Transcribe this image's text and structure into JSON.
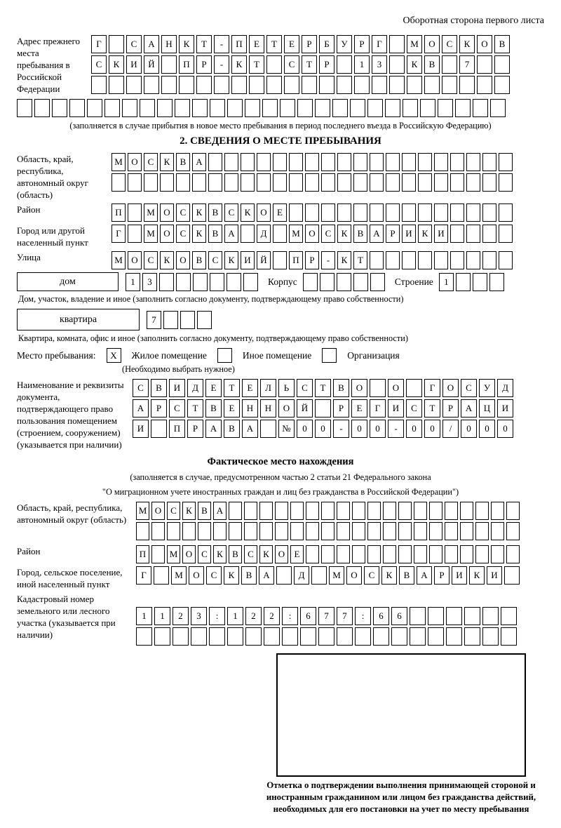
{
  "colors": {
    "border": "#000000",
    "background": "#ffffff",
    "text": "#000000"
  },
  "header": {
    "note": "Оборотная сторона первого листа"
  },
  "prev_address": {
    "label": "Адрес прежнего места пребывания в Российской Федерации",
    "rows": [
      "Г САНКТ-ПЕТЕРБУРГ МОСКОВ",
      "СКИЙ ПР-КТ СТР 13 КВ 7",
      "",
      ""
    ],
    "caption": "(заполняется в случае прибытия в новое место пребывания в период последнего въезда в Российскую Федерацию)"
  },
  "section2": {
    "title": "2. СВЕДЕНИЯ О МЕСТЕ ПРЕБЫВАНИЯ",
    "oblast": {
      "label": "Область, край, республика, автономный округ (область)",
      "rows": [
        "МОСКВА",
        ""
      ]
    },
    "raion": {
      "label": "Район",
      "row": "П МОСКВСКОЕ"
    },
    "gorod": {
      "label": "Город или другой населенный пункт",
      "row": "Г МОСКВА Д МОСКВАРИКИ"
    },
    "ulitsa": {
      "label": "Улица",
      "row": "МОСКОВСКИЙ ПР-КТ"
    },
    "dom": {
      "label": "дом",
      "row": "13"
    },
    "korpus": {
      "label": "Корпус",
      "row": ""
    },
    "stroenie": {
      "label": "Строение",
      "row": "1"
    },
    "dom_caption": "Дом, участок, владение и иное (заполнить согласно документу, подтверждающему право собственности)",
    "kvartira": {
      "label": "квартира",
      "row": "7"
    },
    "kvartira_caption": "Квартира, комната, офис и иное (заполнить согласно документу, подтверждающему право собственности)",
    "place": {
      "label": "Место пребывания:",
      "options": [
        {
          "label": "Жилое помещение",
          "checked": "X"
        },
        {
          "label": "Иное помещение",
          "checked": ""
        },
        {
          "label": "Организация",
          "checked": ""
        }
      ],
      "note": "(Необходимо выбрать нужное)"
    },
    "doc": {
      "label": "Наименование и реквизиты документа, подтверждающего право пользования помещением (строением, сооружением) (указывается при наличии)",
      "rows": [
        "СВИДЕТЕЛЬСТВО О ГОСУД",
        "АРСТВЕННОЙ РЕГИСТРАЦИ",
        "И ПРАВА №00-00-00/000"
      ]
    }
  },
  "actual": {
    "title": "Фактическое место нахождения",
    "caption1": "(заполняется в случае, предусмотренном частью 2 статьи 21 Федерального закона",
    "caption2": "\"О миграционном учете иностранных граждан и лиц без гражданства в Российской Федерации\")",
    "oblast": {
      "label": "Область, край, республика, автономный округ (область)",
      "rows": [
        "МОСКВА",
        ""
      ]
    },
    "raion": {
      "label": "Район",
      "row": "П МОСКВСКОЕ"
    },
    "gorod": {
      "label": "Город, сельское поселение, иной населенный пункт",
      "row": "Г МОСКВА Д МОСКВАРИКИ"
    },
    "kadastr": {
      "label": "Кадастровый номер земельного или лесного участка (указывается при наличии)",
      "rows": [
        "1123:122:677:66",
        ""
      ]
    }
  },
  "stamp": {
    "caption": "Отметка о подтверждении выполнения принимающей стороной и иностранным гражданином или лицом без гражданства действий, необходимых для его постановки на учет по месту пребывания"
  }
}
